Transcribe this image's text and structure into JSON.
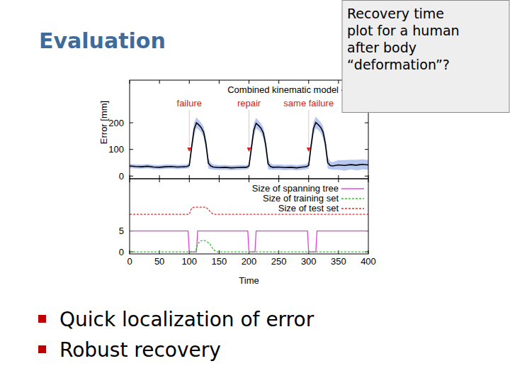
{
  "title": "Evaluation",
  "callout": {
    "lines": [
      "Recovery time",
      "plot for a human",
      "after body",
      "“deformation”?"
    ]
  },
  "bullets": [
    "Quick localization of error",
    "Robust recovery"
  ],
  "chart_data": [
    {
      "type": "line",
      "y_label": "Error [mm]",
      "xlim": [
        0,
        400
      ],
      "xticks": [
        0,
        50,
        100,
        150,
        200,
        250,
        300,
        350,
        400
      ],
      "ylim": [
        -10,
        360
      ],
      "yticks": [
        0,
        100,
        200
      ],
      "tick_labels": "y",
      "legend": "top-right",
      "series": [
        {
          "name": "Combined kinematic model",
          "color": "#000000",
          "x": [
            0,
            10,
            20,
            30,
            40,
            50,
            60,
            70,
            80,
            90,
            96,
            100,
            104,
            108,
            112,
            116,
            120,
            124,
            128,
            132,
            136,
            140,
            150,
            160,
            170,
            180,
            190,
            196,
            200,
            204,
            208,
            212,
            216,
            220,
            224,
            228,
            232,
            236,
            240,
            250,
            260,
            270,
            280,
            290,
            296,
            300,
            304,
            308,
            312,
            316,
            320,
            324,
            328,
            332,
            336,
            340,
            350,
            360,
            370,
            380,
            390,
            400
          ],
          "values": [
            38,
            36,
            35,
            37,
            34,
            33,
            35,
            36,
            34,
            35,
            36,
            40,
            110,
            175,
            200,
            192,
            182,
            165,
            120,
            48,
            38,
            34,
            32,
            33,
            31,
            32,
            33,
            33,
            38,
            105,
            172,
            198,
            190,
            180,
            162,
            118,
            46,
            36,
            33,
            34,
            32,
            33,
            31,
            34,
            35,
            40,
            112,
            178,
            201,
            193,
            183,
            166,
            122,
            50,
            40,
            38,
            42,
            40,
            43,
            41,
            44,
            42
          ],
          "errors": [
            8,
            8,
            8,
            8,
            8,
            8,
            8,
            8,
            8,
            8,
            8,
            10,
            20,
            25,
            20,
            18,
            18,
            20,
            25,
            20,
            12,
            10,
            9,
            9,
            9,
            9,
            9,
            8,
            10,
            20,
            25,
            20,
            18,
            18,
            20,
            25,
            20,
            12,
            10,
            10,
            10,
            10,
            10,
            10,
            10,
            12,
            22,
            25,
            22,
            20,
            20,
            22,
            25,
            22,
            15,
            14,
            18,
            20,
            18,
            20,
            19,
            18
          ]
        }
      ],
      "annotations": [
        {
          "x": 100,
          "text": "failure"
        },
        {
          "x": 200,
          "text": "repair"
        },
        {
          "x": 300,
          "text": "same failure"
        }
      ]
    },
    {
      "type": "line",
      "x_label": "Time",
      "xlim": [
        0,
        400
      ],
      "xticks": [
        0,
        50,
        100,
        150,
        200,
        250,
        300,
        350,
        400
      ],
      "ylim": [
        -0.5,
        17.5
      ],
      "yticks": [
        0,
        5
      ],
      "legend": "top-right",
      "series": [
        {
          "name": "Size of spanning tree",
          "color": "#e040e0",
          "line_style": "solid",
          "x": [
            0,
            98,
            100,
            112,
            114,
            198,
            200,
            210,
            212,
            298,
            300,
            312,
            314,
            400
          ],
          "values": [
            5,
            5,
            0,
            0,
            5,
            5,
            0,
            0,
            5,
            5,
            0,
            0,
            5,
            5
          ]
        },
        {
          "name": "Size of training set",
          "color": "#30c830",
          "line_style": "dashed",
          "x": [
            0,
            110,
            114,
            118,
            126,
            134,
            140,
            146,
            400
          ],
          "values": [
            0,
            0,
            1.8,
            2.6,
            2.7,
            2.0,
            0.6,
            0,
            0
          ]
        },
        {
          "name": "Size of test set",
          "color": "#e03030",
          "line_style": "dashed",
          "x": [
            0,
            100,
            104,
            108,
            128,
            134,
            140,
            400
          ],
          "values": [
            9,
            9,
            10.5,
            10.7,
            10.7,
            9.8,
            9,
            9
          ]
        }
      ]
    }
  ]
}
